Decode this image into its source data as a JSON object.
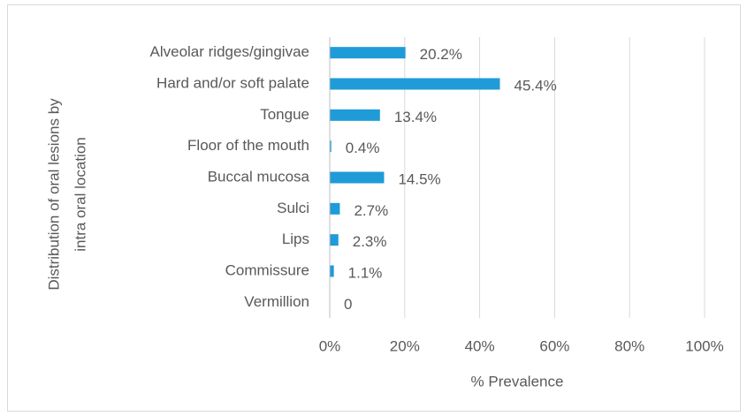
{
  "chart_data": {
    "type": "barh",
    "categories": [
      "Alveolar ridges/gingivae",
      "Hard and/or soft palate",
      "Tongue",
      "Floor of the mouth",
      "Buccal mucosa",
      "Sulci",
      "Lips",
      "Commissure",
      "Vermillion"
    ],
    "values": [
      20.2,
      45.4,
      13.4,
      0.4,
      14.5,
      2.7,
      2.3,
      1.1,
      0
    ],
    "value_labels": [
      "20.2%",
      "45.4%",
      "13.4%",
      "0.4%",
      "14.5%",
      "2.7%",
      "2.3%",
      "1.1%",
      "0"
    ],
    "color": "#1f9bd7",
    "x_label": "% Prevalence",
    "y_label": [
      "Distribution of oral lesions by",
      "intra oral location"
    ],
    "xlim": [
      0,
      100
    ],
    "xticks": [
      {
        "value": 0,
        "label": "0%"
      },
      {
        "value": 20,
        "label": "20%"
      },
      {
        "value": 40,
        "label": "40%"
      },
      {
        "value": 60,
        "label": "60%"
      },
      {
        "value": 80,
        "label": "80%"
      },
      {
        "value": 100,
        "label": "100%"
      }
    ],
    "grid": true
  }
}
